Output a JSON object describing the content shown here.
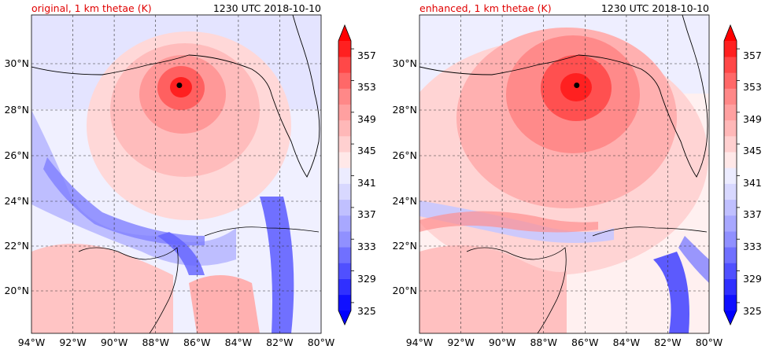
{
  "panels": [
    {
      "title": "original, 1 km thetae (K)",
      "time_label": "1230 UTC 2018-10-10",
      "storm_center": {
        "lon": -86.85,
        "lat": 28.95
      },
      "x_ticks": [
        "94°W",
        "92°W",
        "90°W",
        "88°W",
        "86°W",
        "84°W",
        "82°W",
        "80°W"
      ],
      "y_ticks": [
        "20°N",
        "22°N",
        "24°N",
        "26°N",
        "28°N",
        "30°N"
      ],
      "colorbar_labels": [
        "325",
        "329",
        "333",
        "337",
        "341",
        "345",
        "349",
        "353",
        "357"
      ]
    },
    {
      "title": "enhanced, 1 km thetae (K)",
      "time_label": "1230 UTC 2018-10-10",
      "storm_center": {
        "lon": -86.4,
        "lat": 28.95
      },
      "x_ticks": [
        "94°W",
        "92°W",
        "90°W",
        "88°W",
        "86°W",
        "84°W",
        "82°W",
        "80°W"
      ],
      "y_ticks": [
        "20°N",
        "22°N",
        "24°N",
        "26°N",
        "28°N",
        "30°N"
      ],
      "colorbar_labels": [
        "325",
        "329",
        "333",
        "337",
        "341",
        "345",
        "349",
        "353",
        "357"
      ]
    }
  ],
  "map_extent": {
    "lon_min": -94,
    "lon_max": -80,
    "lat_min": 18.2,
    "lat_max": 32
  },
  "colorbar": {
    "levels": [
      325,
      327,
      329,
      331,
      333,
      335,
      337,
      339,
      341,
      343,
      345,
      347,
      349,
      351,
      353,
      355,
      357,
      359
    ],
    "colors": [
      "#1010ff",
      "#3030ff",
      "#5050ff",
      "#7070ff",
      "#9090ff",
      "#a8a8ff",
      "#c0c0ff",
      "#d8d8ff",
      "#ececff",
      "#ffe8e8",
      "#ffd0d0",
      "#ffb8b8",
      "#ffa0a0",
      "#ff8888",
      "#ff6868",
      "#ff4848",
      "#ff2020"
    ],
    "under_color": "#0000ff",
    "over_color": "#ff0000"
  }
}
